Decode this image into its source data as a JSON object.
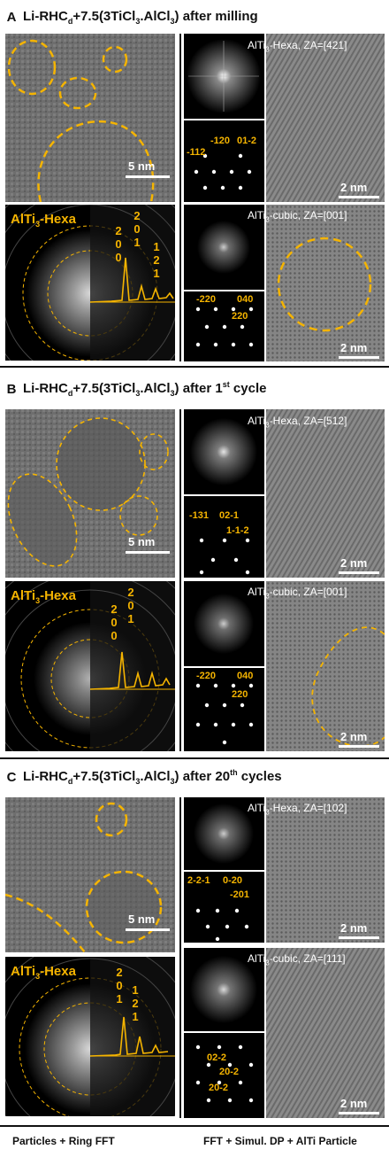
{
  "sections": [
    {
      "letter": "A",
      "title_prefix": "Li-RHC",
      "title_sub": "d",
      "title_mid": "+7.5(3TiCl",
      "title_sub2": "3",
      "title_mid2": ".AlCl",
      "title_sub3": "3",
      "title_suffix": ") after milling",
      "tem_scale": "5 nm",
      "ring_label": "AlTi",
      "ring_label_sub": "3",
      "ring_label_suffix": "-Hexa",
      "peak_digits": [
        [
          "2",
          "0",
          "0"
        ],
        [
          "2",
          "0",
          "1"
        ],
        [
          "1",
          "2",
          "1"
        ]
      ],
      "hexa_label": "AlTi",
      "hexa_sub": "3",
      "hexa_suffix": "-Hexa, ZA=[421]",
      "hexa_dp": [
        "-112",
        "-120",
        "01-2"
      ],
      "hexa_scale": "2 nm",
      "cubic_label": "AlTi",
      "cubic_sub": "3",
      "cubic_suffix": "-cubic, ZA=[001]",
      "cubic_dp": [
        "-220",
        "040",
        "220"
      ],
      "cubic_scale": "2 nm"
    },
    {
      "letter": "B",
      "title_prefix": "Li-RHC",
      "title_sub": "d",
      "title_mid": "+7.5(3TiCl",
      "title_sub2": "3",
      "title_mid2": ".AlCl",
      "title_sub3": "3",
      "title_suffix_a": ") after 1",
      "title_sup": "st",
      "title_suffix_b": " cycle",
      "tem_scale": "5 nm",
      "ring_label": "AlTi",
      "ring_label_sub": "3",
      "ring_label_suffix": "-Hexa",
      "peak_digits": [
        [
          "2",
          "0",
          "0"
        ],
        [
          "2",
          "0",
          "1"
        ]
      ],
      "hexa_label": "AlTi",
      "hexa_sub": "3",
      "hexa_suffix": "-Hexa, ZA=[512]",
      "hexa_dp": [
        "-131",
        "02-1",
        "1-1-2"
      ],
      "hexa_scale": "2 nm",
      "cubic_label": "AlTi",
      "cubic_sub": "3",
      "cubic_suffix": "-cubic, ZA=[001]",
      "cubic_dp": [
        "-220",
        "040",
        "220"
      ],
      "cubic_scale": "2 nm"
    },
    {
      "letter": "C",
      "title_prefix": "Li-RHC",
      "title_sub": "d",
      "title_mid": "+7.5(3TiCl",
      "title_sub2": "3",
      "title_mid2": ".AlCl",
      "title_sub3": "3",
      "title_suffix_a": ") after 20",
      "title_sup": "th",
      "title_suffix_b": " cycles",
      "tem_scale": "5 nm",
      "ring_label": "AlTi",
      "ring_label_sub": "3",
      "ring_label_suffix": "-Hexa",
      "peak_digits": [
        [
          "2",
          "0",
          "1"
        ],
        [
          "1",
          "2",
          "1"
        ]
      ],
      "hexa_label": "AlTi",
      "hexa_sub": "3",
      "hexa_suffix": "-Hexa, ZA=[102]",
      "hexa_dp": [
        "2-2-1",
        "0-20",
        "-201"
      ],
      "hexa_scale": "2 nm",
      "cubic_label": "AlTi",
      "cubic_sub": "3",
      "cubic_suffix": "-cubic, ZA=[111]",
      "cubic_dp": [
        "02-2",
        "20-2",
        "20-2"
      ],
      "cubic_scale": "2 nm"
    }
  ],
  "footer": {
    "left": "Particles + Ring FFT",
    "right": "FFT + Simul. DP + AlTi Particle"
  },
  "colors": {
    "accent": "#f5b400",
    "tem_gray": "#707070",
    "fft_bg": "#000000"
  }
}
